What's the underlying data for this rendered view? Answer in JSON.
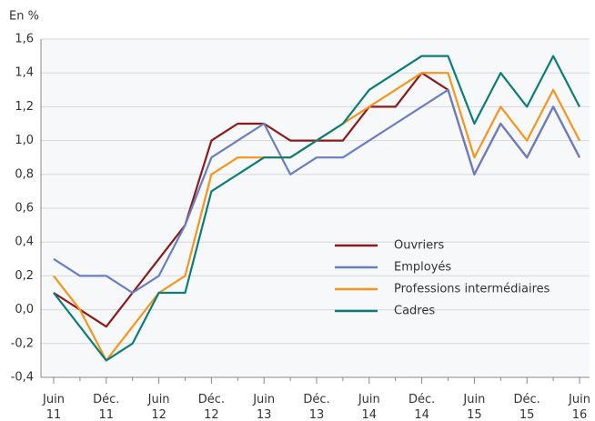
{
  "chart_data": {
    "type": "line",
    "y_label": "En %",
    "categories": [
      "Juin 11",
      null,
      "Déc. 11",
      null,
      "Juin 12",
      null,
      "Déc. 12",
      null,
      "Juin 13",
      null,
      "Déc. 13",
      null,
      "Juin 14",
      null,
      "Déc. 14",
      null,
      "Juin 15",
      null,
      "Déc. 15",
      null,
      "Juin 16"
    ],
    "series": [
      {
        "name": "Ouvriers",
        "color": "#8b1a1a",
        "values": [
          0.1,
          0.0,
          -0.1,
          0.1,
          0.3,
          0.5,
          1.0,
          1.1,
          1.1,
          1.0,
          1.0,
          1.0,
          1.2,
          1.2,
          1.4,
          1.3,
          0.8,
          1.1,
          0.9,
          1.2,
          0.9
        ]
      },
      {
        "name": "Employés",
        "color": "#6a7fc1",
        "values": [
          0.3,
          0.2,
          0.2,
          0.1,
          0.2,
          0.5,
          0.9,
          1.0,
          1.1,
          0.8,
          0.9,
          0.9,
          1.0,
          1.1,
          1.2,
          1.3,
          0.8,
          1.1,
          0.9,
          1.2,
          0.9
        ]
      },
      {
        "name": "Professions intermédiaires",
        "color": "#f7941d",
        "values": [
          0.2,
          0.0,
          -0.3,
          -0.1,
          0.1,
          0.2,
          0.8,
          0.9,
          0.9,
          0.9,
          1.0,
          1.1,
          1.2,
          1.3,
          1.4,
          1.4,
          0.9,
          1.2,
          1.0,
          1.3,
          1.0
        ]
      },
      {
        "name": "Cadres",
        "color": "#0a7d7a",
        "values": [
          0.1,
          -0.1,
          -0.3,
          -0.2,
          0.1,
          0.1,
          0.7,
          0.8,
          0.9,
          0.9,
          1.0,
          1.1,
          1.3,
          1.4,
          1.5,
          1.5,
          1.1,
          1.4,
          1.2,
          1.5,
          1.2
        ]
      }
    ],
    "ylim": [
      -0.4,
      1.6
    ],
    "yticks": [
      {
        "value": -0.4,
        "label": "-0,4"
      },
      {
        "value": -0.2,
        "label": "-0,2"
      },
      {
        "value": 0,
        "label": "0,0"
      },
      {
        "value": 0.2,
        "label": "0,2"
      },
      {
        "value": 0.4,
        "label": "0,4"
      },
      {
        "value": 0.6,
        "label": "0,6"
      },
      {
        "value": 0.8,
        "label": "0,8"
      },
      {
        "value": 1.0,
        "label": "1,0"
      },
      {
        "value": 1.2,
        "label": "1,2"
      },
      {
        "value": 1.4,
        "label": "1,4"
      },
      {
        "value": 1.6,
        "label": "1,6"
      }
    ],
    "grid": true
  }
}
